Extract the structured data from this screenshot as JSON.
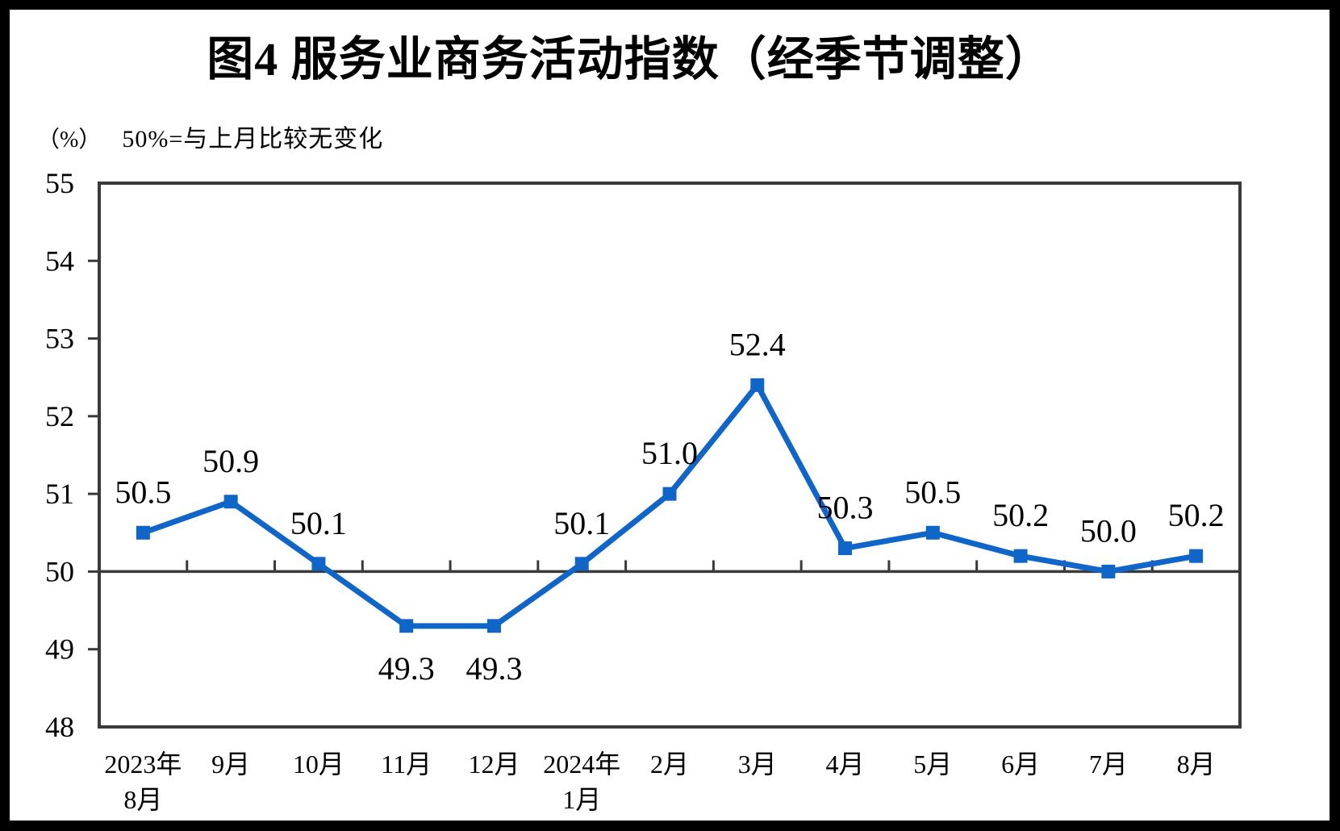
{
  "title": "图4 服务业商务活动指数（经季节调整）",
  "unit_label": "（%）",
  "note": "50%=与上月比较无变化",
  "colors": {
    "line": "#1065C8",
    "axis": "#3A3A3A",
    "text": "#000000",
    "frame": "#000000",
    "canvas": "#FFFFFF"
  },
  "chart_data": {
    "type": "line",
    "title": "图4 服务业商务活动指数（经季节调整）",
    "ylabel_unit": "（%）",
    "annotation": "50%=与上月比较无变化",
    "categories": [
      {
        "line1": "2023年",
        "line2": "8月"
      },
      {
        "line1": "9月"
      },
      {
        "line1": "10月"
      },
      {
        "line1": "11月"
      },
      {
        "line1": "12月"
      },
      {
        "line1": "2024年",
        "line2": "1月"
      },
      {
        "line1": "2月"
      },
      {
        "line1": "3月"
      },
      {
        "line1": "4月"
      },
      {
        "line1": "5月"
      },
      {
        "line1": "6月"
      },
      {
        "line1": "7月"
      },
      {
        "line1": "8月"
      }
    ],
    "values": [
      50.5,
      50.9,
      50.1,
      49.3,
      49.3,
      50.1,
      51.0,
      52.4,
      50.3,
      50.5,
      50.2,
      50.0,
      50.2
    ],
    "data_labels": [
      "50.5",
      "50.9",
      "50.1",
      "49.3",
      "49.3",
      "50.1",
      "51.0",
      "52.4",
      "50.3",
      "50.5",
      "50.2",
      "50.0",
      "50.2"
    ],
    "label_side": [
      "above",
      "above",
      "above",
      "below",
      "below",
      "above",
      "above",
      "above",
      "above",
      "above",
      "above",
      "above",
      "above"
    ],
    "ylim": [
      48,
      55
    ],
    "yticks": [
      "48",
      "49",
      "50",
      "51",
      "52",
      "53",
      "54",
      "55"
    ],
    "reference_line": 50,
    "marker": "square",
    "grid": false,
    "legend": "none"
  }
}
